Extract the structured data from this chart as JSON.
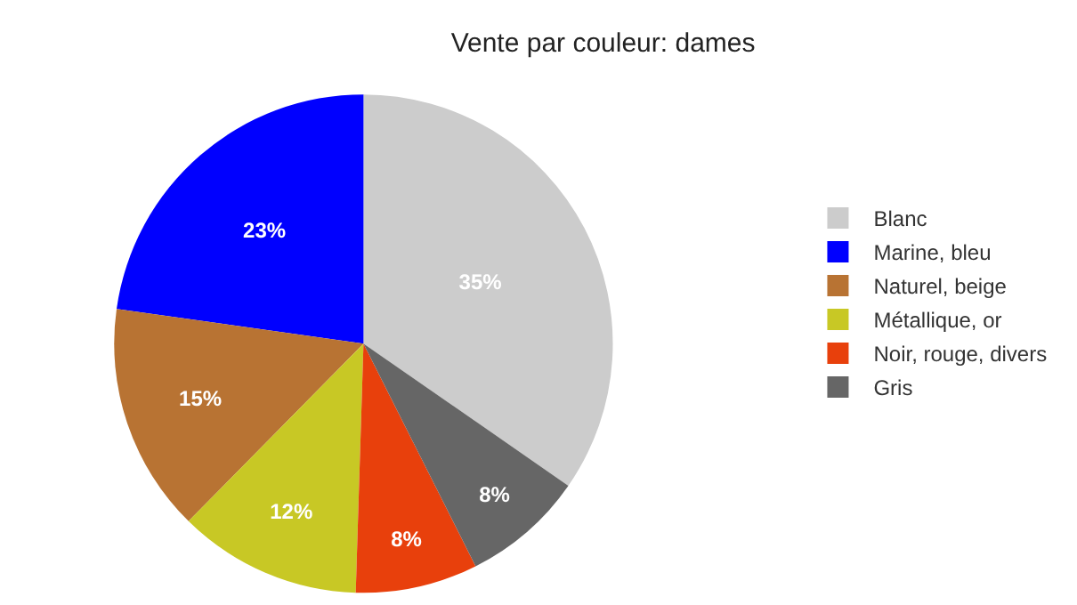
{
  "chart_data": {
    "type": "pie",
    "title": "Vente par couleur: dames",
    "categories": [
      "Blanc",
      "Marine, bleu",
      "Naturel, beige",
      "Métallique, or",
      "Noir, rouge, divers",
      "Gris"
    ],
    "values": [
      35,
      23,
      15,
      12,
      8,
      8
    ],
    "value_labels": [
      "35%",
      "23%",
      "15%",
      "12%",
      "8%",
      "8%"
    ],
    "colors": [
      "#cccccc",
      "#0000ff",
      "#b87333",
      "#c8c825",
      "#e8400c",
      "#666666"
    ],
    "legend": "right"
  }
}
